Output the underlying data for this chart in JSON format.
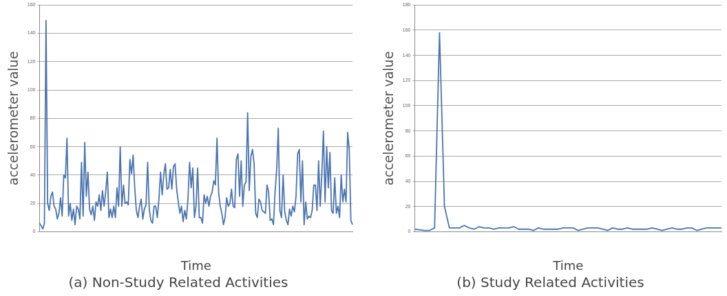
{
  "chart_data": [
    {
      "type": "line",
      "title": "(a) Non-Study Related Activities",
      "xlabel": "Time",
      "ylabel": "accelerometer value",
      "categories": [
        null,
        null,
        null,
        null,
        null,
        null,
        null,
        null,
        null,
        null,
        null,
        null,
        null,
        null,
        null,
        null,
        null,
        null,
        null,
        null,
        null,
        null,
        null,
        null,
        null,
        null,
        null,
        null,
        null,
        null,
        null,
        null,
        null,
        null,
        null,
        null,
        null,
        null,
        null,
        null,
        null,
        null,
        null,
        null,
        null,
        null,
        null,
        null,
        null,
        null,
        null,
        null,
        null,
        null,
        null,
        null,
        null,
        null,
        null,
        null,
        null,
        null,
        null,
        null,
        null,
        null,
        null,
        null,
        null,
        null,
        null,
        null,
        null,
        null,
        null,
        null,
        null,
        null,
        null,
        null,
        null,
        null,
        null,
        null,
        null,
        null,
        null,
        null,
        null,
        null,
        null,
        null,
        null,
        null,
        null,
        null,
        null,
        null,
        null,
        null,
        null,
        null,
        null,
        null,
        null,
        null,
        null,
        null,
        null,
        null,
        null,
        null,
        null,
        null,
        null,
        null,
        null,
        null,
        null,
        null,
        null,
        null,
        null,
        null,
        null,
        null,
        null,
        null,
        null,
        null,
        null,
        null,
        null,
        null,
        null,
        null,
        null,
        null,
        null,
        null,
        null,
        null,
        null,
        null,
        null,
        null,
        null,
        null,
        null,
        null,
        null,
        null,
        null,
        null,
        null,
        null,
        null,
        null,
        null,
        null,
        null,
        null,
        null,
        null,
        null,
        null,
        null,
        null,
        null,
        null,
        null,
        null,
        null,
        null,
        null,
        null,
        null,
        null,
        null,
        null,
        null,
        null,
        null,
        null,
        null,
        null,
        null,
        null,
        null,
        null,
        null,
        null,
        null,
        null,
        null
      ],
      "series": [
        {
          "color": "#4a74b0",
          "values": [
            6,
            4,
            2,
            6,
            149,
            20,
            15,
            25,
            28,
            18,
            16,
            9,
            13,
            24,
            11,
            40,
            38,
            66,
            11,
            20,
            8,
            16,
            5,
            18,
            16,
            9,
            49,
            11,
            63,
            25,
            42,
            16,
            12,
            18,
            8,
            21,
            18,
            26,
            15,
            29,
            18,
            28,
            42,
            10,
            16,
            10,
            18,
            10,
            31,
            18,
            60,
            18,
            33,
            20,
            21,
            19,
            51,
            41,
            54,
            31,
            15,
            10,
            18,
            23,
            9,
            16,
            19,
            49,
            16,
            8,
            6,
            18,
            18,
            10,
            23,
            42,
            26,
            40,
            48,
            30,
            31,
            44,
            30,
            46,
            48,
            30,
            21,
            13,
            18,
            7,
            15,
            9,
            23,
            49,
            31,
            45,
            10,
            18,
            45,
            10,
            10,
            6,
            26,
            20,
            25,
            18,
            25,
            28,
            36,
            33,
            66,
            28,
            18,
            13,
            5,
            10,
            24,
            18,
            20,
            30,
            18,
            17,
            51,
            55,
            25,
            50,
            18,
            33,
            35,
            84,
            29,
            53,
            58,
            48,
            13,
            10,
            23,
            21,
            15,
            14,
            13,
            33,
            28,
            8,
            9,
            5,
            28,
            44,
            73,
            15,
            10,
            40,
            14,
            8,
            5,
            16,
            11,
            18,
            14,
            25,
            55,
            58,
            21,
            50,
            5,
            21,
            9,
            11,
            10,
            15,
            33,
            33,
            15,
            50,
            18,
            41,
            71,
            21,
            60,
            31,
            56,
            15,
            13,
            38,
            13,
            18,
            10,
            40,
            21,
            30,
            21,
            70,
            58,
            8,
            5
          ]
        }
      ],
      "ylim": [
        0,
        160
      ],
      "yticks": [
        0,
        20,
        40,
        60,
        80,
        100,
        120,
        140,
        160
      ],
      "grid": "y",
      "legend": false,
      "marker": "none",
      "line_style": "solid",
      "tick_labels": "y"
    },
    {
      "type": "line",
      "title": "(b) Study Related Activities",
      "xlabel": "Time",
      "ylabel": "accelerometer value",
      "categories": [
        null,
        null,
        null,
        null,
        null,
        null,
        null,
        null,
        null,
        null,
        null,
        null,
        null,
        null,
        null,
        null,
        null,
        null,
        null,
        null,
        null,
        null,
        null,
        null,
        null,
        null,
        null,
        null,
        null,
        null,
        null,
        null,
        null,
        null,
        null,
        null,
        null,
        null,
        null,
        null,
        null,
        null,
        null,
        null,
        null,
        null,
        null,
        null,
        null,
        null,
        null,
        null,
        null,
        null,
        null,
        null,
        null,
        null,
        null,
        null,
        null,
        null,
        null
      ],
      "series": [
        {
          "color": "#4a74b0",
          "values": [
            2,
            1.5,
            1,
            1,
            3,
            158,
            20,
            3,
            3,
            3,
            5,
            3,
            2,
            4,
            3,
            3,
            2,
            3,
            3,
            3,
            4,
            2,
            2,
            2,
            1,
            3,
            2,
            2,
            2,
            2,
            3,
            3,
            3,
            1,
            2,
            3,
            3,
            3,
            2,
            1,
            3,
            2,
            2,
            3,
            2,
            2,
            2,
            2,
            3,
            2,
            1,
            2,
            3,
            2,
            2,
            3,
            3,
            1,
            2,
            3,
            3,
            3,
            3
          ]
        }
      ],
      "ylim": [
        0,
        180
      ],
      "yticks": [
        0,
        20,
        40,
        60,
        80,
        100,
        120,
        140,
        160,
        180
      ],
      "grid": "y",
      "legend": false,
      "marker": "none",
      "line_style": "solid",
      "tick_labels": "y"
    }
  ]
}
